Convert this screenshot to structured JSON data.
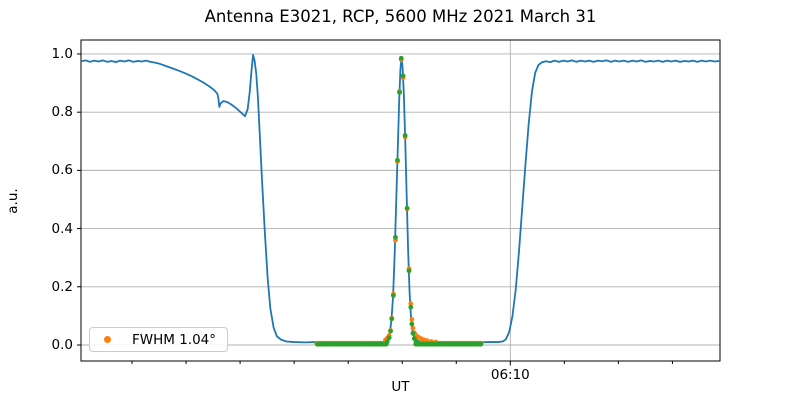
{
  "figure": {
    "title": "Antenna E3021, RCP, 5600 MHz 2021 March 31",
    "xlabel": "UT",
    "ylabel": "a.u."
  },
  "legend": {
    "label": "FWHM 1.04°"
  },
  "colors": {
    "scan_line": "#1f77b4",
    "data_markers": "#ff7f0e",
    "fit_markers": "#2ca02c",
    "grid": "#b0b0b0",
    "spine": "#000000"
  },
  "chart_data": {
    "type": "line",
    "title": "Antenna E3021, RCP, 5600 MHz 2021 March 31",
    "xlabel": "UT",
    "ylabel": "a.u.",
    "x_unit": "minutes after 05:30 UT",
    "xlim": [
      0.28,
      59.4
    ],
    "ylim": [
      -0.055,
      1.048
    ],
    "grid": {
      "horizontal": true,
      "vertical_at_major_ticks": true
    },
    "y_ticks": [
      {
        "v": 0.0,
        "label": "0.0"
      },
      {
        "v": 0.2,
        "label": "0.2"
      },
      {
        "v": 0.4,
        "label": "0.4"
      },
      {
        "v": 0.6,
        "label": "0.6"
      },
      {
        "v": 0.8,
        "label": "0.8"
      },
      {
        "v": 1.0,
        "label": "1.0"
      }
    ],
    "x_major_ticks": [
      {
        "x": 40,
        "label": "06:10"
      }
    ],
    "x_minor_ticks": [
      5,
      10,
      15,
      20,
      25,
      30,
      35,
      45,
      50,
      55
    ],
    "legend": {
      "position": "lower left",
      "entries": [
        {
          "label": "FWHM 1.04°",
          "series": "data"
        }
      ]
    },
    "annotations": {
      "peak_center_ut": "06:00",
      "peak_value": 0.99,
      "fwhm_deg": 1.04
    },
    "series": [
      {
        "name": "scan",
        "kind": "line",
        "color": "#1f77b4",
        "line_width": 1.8,
        "points": [
          [
            0.28,
            0.975
          ],
          [
            0.7,
            0.978
          ],
          [
            1.1,
            0.973
          ],
          [
            1.5,
            0.977
          ],
          [
            1.9,
            0.974
          ],
          [
            2.3,
            0.978
          ],
          [
            2.7,
            0.973
          ],
          [
            3.1,
            0.976
          ],
          [
            3.5,
            0.972
          ],
          [
            3.9,
            0.977
          ],
          [
            4.3,
            0.974
          ],
          [
            4.7,
            0.978
          ],
          [
            5.1,
            0.973
          ],
          [
            5.5,
            0.976
          ],
          [
            5.9,
            0.974
          ],
          [
            6.3,
            0.977
          ],
          [
            6.7,
            0.973
          ],
          [
            7.0,
            0.971
          ],
          [
            7.5,
            0.967
          ],
          [
            8.1,
            0.959
          ],
          [
            8.7,
            0.951
          ],
          [
            9.3,
            0.943
          ],
          [
            9.9,
            0.934
          ],
          [
            10.5,
            0.924
          ],
          [
            11.1,
            0.912
          ],
          [
            11.6,
            0.902
          ],
          [
            12.1,
            0.89
          ],
          [
            12.6,
            0.876
          ],
          [
            12.9,
            0.863
          ],
          [
            13.0,
            0.845
          ],
          [
            13.08,
            0.818
          ],
          [
            13.2,
            0.83
          ],
          [
            13.45,
            0.838
          ],
          [
            13.8,
            0.835
          ],
          [
            14.2,
            0.826
          ],
          [
            14.7,
            0.812
          ],
          [
            15.1,
            0.798
          ],
          [
            15.45,
            0.786
          ],
          [
            15.7,
            0.81
          ],
          [
            15.9,
            0.873
          ],
          [
            16.05,
            0.94
          ],
          [
            16.2,
            0.997
          ],
          [
            16.35,
            0.975
          ],
          [
            16.5,
            0.93
          ],
          [
            16.65,
            0.85
          ],
          [
            16.85,
            0.7
          ],
          [
            17.05,
            0.55
          ],
          [
            17.3,
            0.38
          ],
          [
            17.55,
            0.23
          ],
          [
            17.8,
            0.125
          ],
          [
            18.1,
            0.06
          ],
          [
            18.4,
            0.03
          ],
          [
            18.8,
            0.018
          ],
          [
            19.3,
            0.012
          ],
          [
            20,
            0.01
          ],
          [
            21,
            0.009
          ],
          [
            22,
            0.01
          ],
          [
            23,
            0.009
          ],
          [
            24,
            0.01
          ],
          [
            25,
            0.009
          ],
          [
            26,
            0.01
          ],
          [
            27,
            0.009
          ],
          [
            28,
            0.01
          ],
          [
            28.5,
            0.012
          ],
          [
            28.7,
            0.02
          ],
          [
            28.85,
            0.04
          ],
          [
            29.0,
            0.085
          ],
          [
            29.15,
            0.165
          ],
          [
            29.3,
            0.31
          ],
          [
            29.45,
            0.5
          ],
          [
            29.6,
            0.69
          ],
          [
            29.72,
            0.84
          ],
          [
            29.83,
            0.945
          ],
          [
            29.93,
            0.99
          ],
          [
            30.03,
            0.955
          ],
          [
            30.15,
            0.86
          ],
          [
            30.28,
            0.7
          ],
          [
            30.42,
            0.5
          ],
          [
            30.55,
            0.32
          ],
          [
            30.68,
            0.18
          ],
          [
            30.82,
            0.09
          ],
          [
            30.95,
            0.045
          ],
          [
            31.1,
            0.025
          ],
          [
            31.3,
            0.015
          ],
          [
            32,
            0.011
          ],
          [
            33,
            0.009
          ],
          [
            34,
            0.01
          ],
          [
            35,
            0.009
          ],
          [
            36,
            0.01
          ],
          [
            37,
            0.009
          ],
          [
            38,
            0.01
          ],
          [
            38.8,
            0.01
          ],
          [
            39.3,
            0.012
          ],
          [
            39.6,
            0.02
          ],
          [
            39.9,
            0.045
          ],
          [
            40.2,
            0.1
          ],
          [
            40.5,
            0.19
          ],
          [
            40.8,
            0.32
          ],
          [
            41.1,
            0.47
          ],
          [
            41.4,
            0.62
          ],
          [
            41.7,
            0.76
          ],
          [
            42.0,
            0.87
          ],
          [
            42.3,
            0.935
          ],
          [
            42.6,
            0.962
          ],
          [
            42.9,
            0.971
          ],
          [
            43.3,
            0.975
          ],
          [
            43.7,
            0.972
          ],
          [
            44.1,
            0.977
          ],
          [
            44.5,
            0.973
          ],
          [
            44.9,
            0.977
          ],
          [
            45.3,
            0.974
          ],
          [
            45.7,
            0.978
          ],
          [
            46.1,
            0.973
          ],
          [
            46.5,
            0.977
          ],
          [
            46.9,
            0.974
          ],
          [
            47.3,
            0.977
          ],
          [
            47.7,
            0.973
          ],
          [
            48.1,
            0.977
          ],
          [
            48.5,
            0.975
          ],
          [
            48.9,
            0.978
          ],
          [
            49.3,
            0.973
          ],
          [
            49.7,
            0.977
          ],
          [
            50.1,
            0.974
          ],
          [
            50.5,
            0.977
          ],
          [
            50.9,
            0.973
          ],
          [
            51.3,
            0.977
          ],
          [
            51.7,
            0.974
          ],
          [
            52.1,
            0.978
          ],
          [
            52.5,
            0.973
          ],
          [
            52.9,
            0.976
          ],
          [
            53.3,
            0.974
          ],
          [
            53.7,
            0.977
          ],
          [
            54.1,
            0.973
          ],
          [
            54.5,
            0.977
          ],
          [
            54.9,
            0.974
          ],
          [
            55.3,
            0.977
          ],
          [
            55.7,
            0.973
          ],
          [
            56.1,
            0.976
          ],
          [
            56.5,
            0.974
          ],
          [
            56.9,
            0.977
          ],
          [
            57.3,
            0.973
          ],
          [
            57.7,
            0.977
          ],
          [
            58.1,
            0.974
          ],
          [
            58.5,
            0.977
          ],
          [
            58.9,
            0.974
          ],
          [
            59.4,
            0.976
          ]
        ]
      },
      {
        "name": "data",
        "kind": "scatter",
        "color": "#ff7f0e",
        "marker_radius": 2.4,
        "points": [
          [
            28.45,
            0.018
          ],
          [
            28.62,
            0.024
          ],
          [
            28.79,
            0.033
          ],
          [
            28.92,
            0.05
          ],
          [
            29.03,
            0.092
          ],
          [
            29.18,
            0.175
          ],
          [
            29.37,
            0.36
          ],
          [
            29.56,
            0.63
          ],
          [
            29.75,
            0.872
          ],
          [
            29.91,
            0.98
          ],
          [
            30.08,
            0.918
          ],
          [
            30.27,
            0.715
          ],
          [
            30.45,
            0.468
          ],
          [
            30.63,
            0.262
          ],
          [
            30.79,
            0.142
          ],
          [
            30.89,
            0.088
          ],
          [
            30.99,
            0.058
          ],
          [
            31.12,
            0.042
          ],
          [
            31.28,
            0.033
          ],
          [
            31.5,
            0.027
          ],
          [
            31.75,
            0.022
          ],
          [
            32.0,
            0.018
          ],
          [
            32.3,
            0.015
          ],
          [
            32.7,
            0.012
          ],
          [
            33.1,
            0.01
          ]
        ],
        "baseline_segments": [
          {
            "from": 22.1,
            "to": 28.45,
            "value": 0.006,
            "step": 0.09
          },
          {
            "from": 31.35,
            "to": 37.3,
            "value": 0.006,
            "step": 0.09
          }
        ]
      },
      {
        "name": "fit",
        "kind": "scatter",
        "color": "#2ca02c",
        "marker_radius": 2.4,
        "points": [
          [
            28.62,
            0.012
          ],
          [
            28.79,
            0.025
          ],
          [
            28.92,
            0.048
          ],
          [
            29.03,
            0.09
          ],
          [
            29.18,
            0.17
          ],
          [
            29.37,
            0.37
          ],
          [
            29.56,
            0.635
          ],
          [
            29.75,
            0.868
          ],
          [
            29.91,
            0.985
          ],
          [
            30.08,
            0.925
          ],
          [
            30.27,
            0.72
          ],
          [
            30.45,
            0.47
          ],
          [
            30.63,
            0.255
          ],
          [
            30.79,
            0.13
          ],
          [
            30.89,
            0.072
          ],
          [
            30.99,
            0.04
          ],
          [
            31.12,
            0.022
          ],
          [
            31.28,
            0.013
          ]
        ],
        "baseline_segments": [
          {
            "from": 22.15,
            "to": 28.55,
            "value": 0.003,
            "step": 0.07
          },
          {
            "from": 31.25,
            "to": 37.3,
            "value": 0.003,
            "step": 0.07
          }
        ]
      }
    ]
  }
}
